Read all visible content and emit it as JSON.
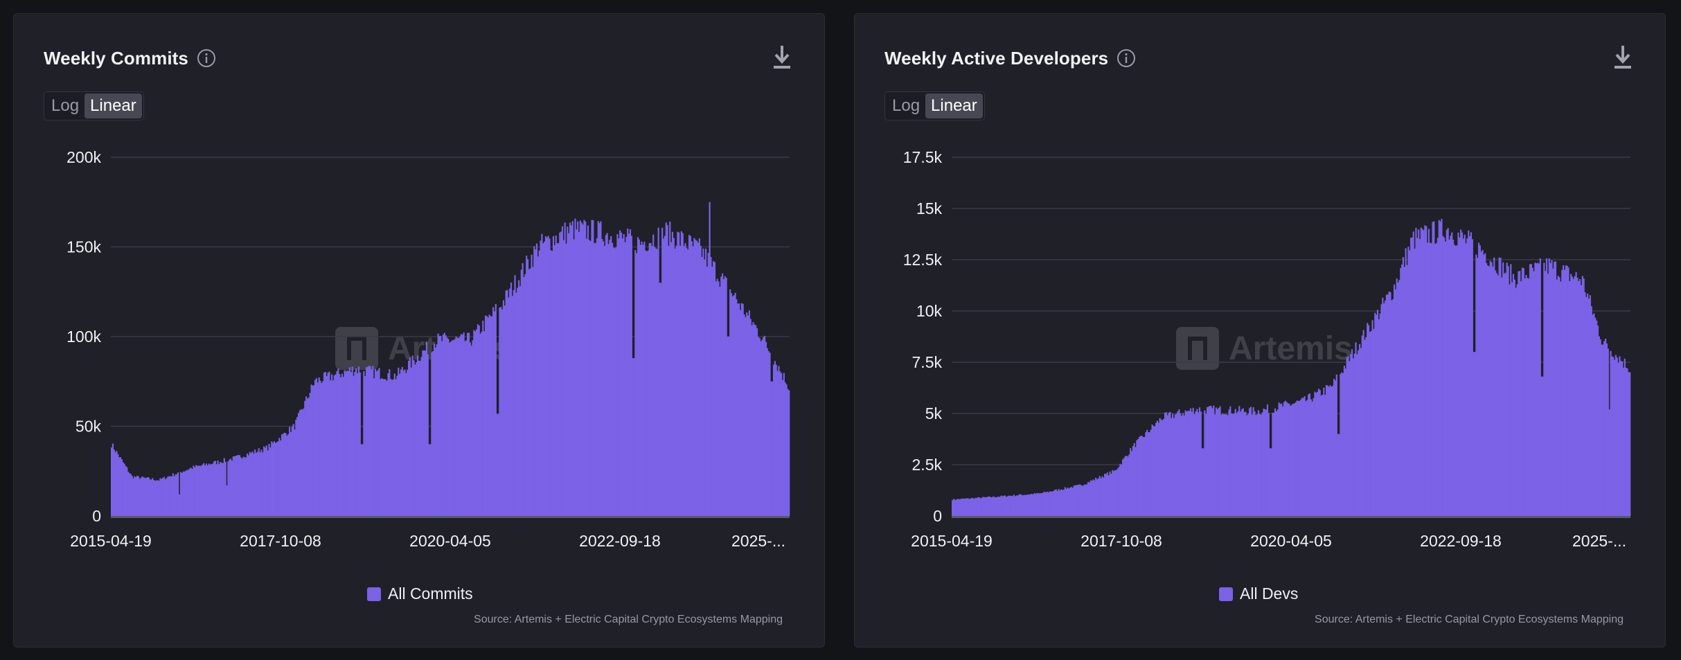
{
  "colors": {
    "bar": "#7b62e6",
    "grid": "#3a3b47",
    "axis_text": "#f2f2f5",
    "baseline": "#5a5b66"
  },
  "watermark": "Artemis",
  "chart_data": [
    {
      "type": "bar",
      "id": "commits",
      "title": "Weekly Commits",
      "scale_toggle": {
        "options": [
          "Log",
          "Linear"
        ],
        "selected": "Linear"
      },
      "ylim": [
        0,
        200000
      ],
      "yticks": [
        0,
        50000,
        100000,
        150000,
        200000
      ],
      "ytick_labels": [
        "0",
        "50k",
        "100k",
        "150k",
        "200k"
      ],
      "xtick_labels": [
        "2015-04-19",
        "2017-10-08",
        "2020-04-05",
        "2022-09-18",
        "2025-..."
      ],
      "legend": [
        "All Commits"
      ],
      "series": [
        {
          "name": "All Commits",
          "start": "2015-04-19",
          "end": "2025-06-01",
          "trend_points": [
            [
              0,
              40000
            ],
            [
              0.03,
              22000
            ],
            [
              0.07,
              20000
            ],
            [
              0.12,
              27000
            ],
            [
              0.18,
              32000
            ],
            [
              0.23,
              38000
            ],
            [
              0.27,
              50000
            ],
            [
              0.3,
              75000
            ],
            [
              0.36,
              82000
            ],
            [
              0.42,
              78000
            ],
            [
              0.48,
              98000
            ],
            [
              0.53,
              98000
            ],
            [
              0.58,
              120000
            ],
            [
              0.63,
              150000
            ],
            [
              0.68,
              160000
            ],
            [
              0.72,
              158000
            ],
            [
              0.78,
              152000
            ],
            [
              0.82,
              158000
            ],
            [
              0.87,
              148000
            ],
            [
              0.92,
              122000
            ],
            [
              0.96,
              100000
            ],
            [
              1.0,
              72000
            ]
          ],
          "spikes": [
            [
              0.1,
              12000
            ],
            [
              0.17,
              17000
            ],
            [
              0.37,
              40000
            ],
            [
              0.47,
              40000
            ],
            [
              0.57,
              57000
            ],
            [
              0.77,
              88000
            ],
            [
              0.81,
              130000
            ],
            [
              0.883,
              175000
            ],
            [
              0.91,
              100000
            ],
            [
              0.975,
              75000
            ]
          ]
        }
      ],
      "source": "Source: Artemis + Electric Capital Crypto Ecosystems Mapping"
    },
    {
      "type": "bar",
      "id": "devs",
      "title": "Weekly Active Developers",
      "scale_toggle": {
        "options": [
          "Log",
          "Linear"
        ],
        "selected": "Linear"
      },
      "ylim": [
        0,
        17500
      ],
      "yticks": [
        0,
        2500,
        5000,
        7500,
        10000,
        12500,
        15000,
        17500
      ],
      "ytick_labels": [
        "0",
        "2.5k",
        "5k",
        "7.5k",
        "10k",
        "12.5k",
        "15k",
        "17.5k"
      ],
      "xtick_labels": [
        "2015-04-19",
        "2017-10-08",
        "2020-04-05",
        "2022-09-18",
        "2025-..."
      ],
      "legend": [
        "All Devs"
      ],
      "series": [
        {
          "name": "All Devs",
          "start": "2015-04-19",
          "end": "2025-06-01",
          "trend_points": [
            [
              0,
              800
            ],
            [
              0.07,
              950
            ],
            [
              0.13,
              1100
            ],
            [
              0.19,
              1500
            ],
            [
              0.24,
              2200
            ],
            [
              0.27,
              3500
            ],
            [
              0.31,
              4800
            ],
            [
              0.36,
              5200
            ],
            [
              0.45,
              5100
            ],
            [
              0.52,
              5600
            ],
            [
              0.56,
              6300
            ],
            [
              0.6,
              8400
            ],
            [
              0.65,
              11000
            ],
            [
              0.68,
              13500
            ],
            [
              0.73,
              14000
            ],
            [
              0.78,
              13000
            ],
            [
              0.83,
              11600
            ],
            [
              0.88,
              12200
            ],
            [
              0.93,
              11500
            ],
            [
              0.96,
              8500
            ],
            [
              1.0,
              7200
            ]
          ],
          "spikes": [
            [
              0.37,
              3300
            ],
            [
              0.47,
              3300
            ],
            [
              0.57,
              4000
            ],
            [
              0.77,
              8000
            ],
            [
              0.87,
              6800
            ],
            [
              0.97,
              5200
            ]
          ]
        }
      ],
      "source": "Source: Artemis + Electric Capital Crypto Ecosystems Mapping"
    }
  ]
}
